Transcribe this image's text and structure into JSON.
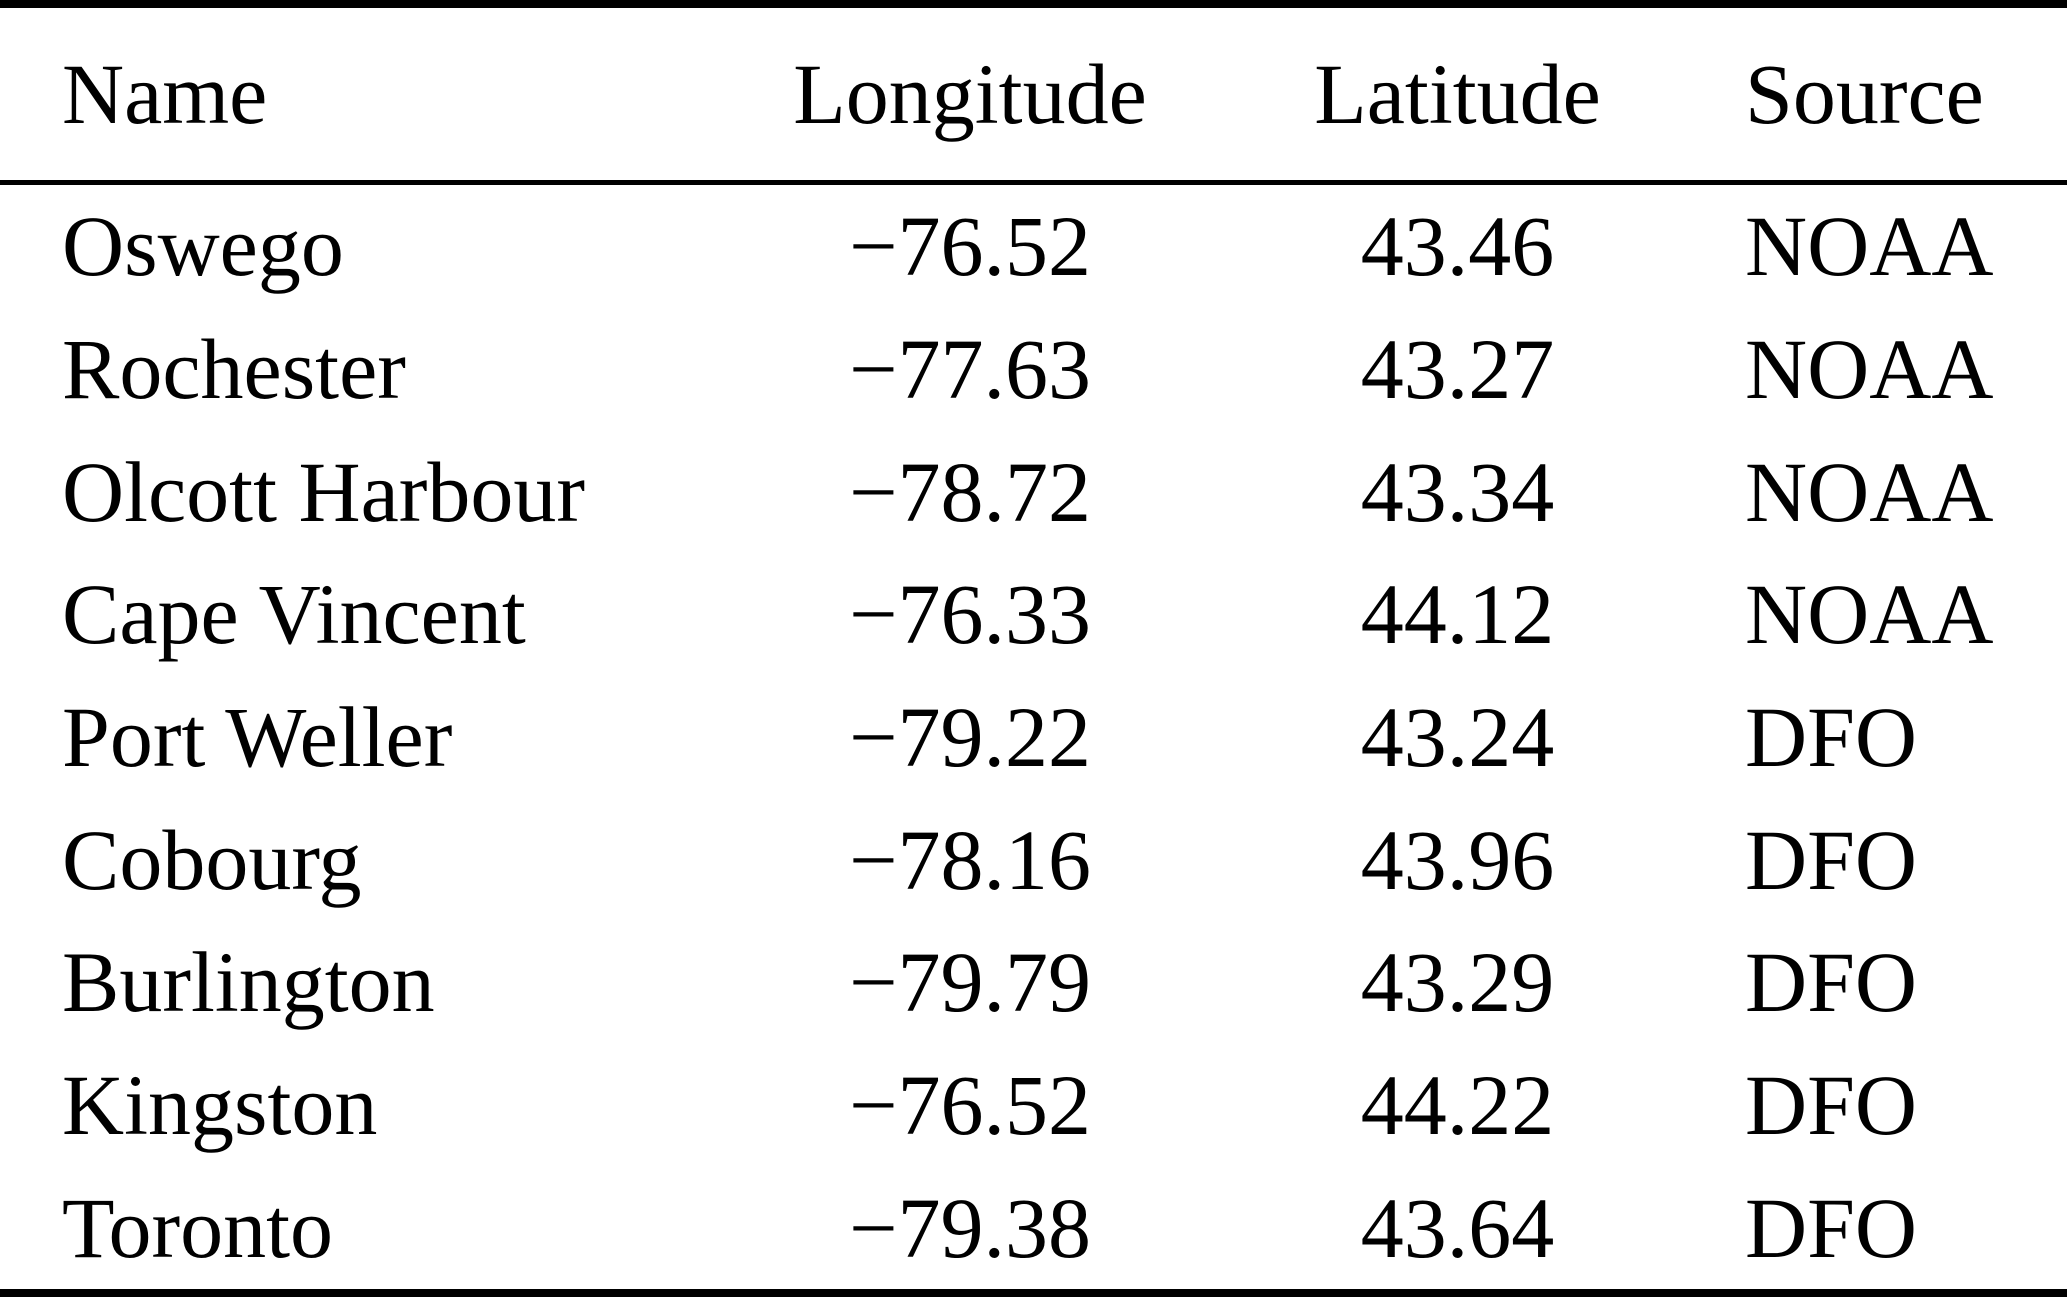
{
  "page": {
    "background_color": "#ffffff",
    "text_color": "#000000",
    "rule_color": "#000000"
  },
  "table": {
    "headers": {
      "name": "Name",
      "longitude": "Longitude",
      "latitude": "Latitude",
      "source": "Source"
    },
    "rows": [
      {
        "name": "Oswego",
        "longitude": "−76.52",
        "latitude": "43.46",
        "source": "NOAA"
      },
      {
        "name": "Rochester",
        "longitude": "−77.63",
        "latitude": "43.27",
        "source": "NOAA"
      },
      {
        "name": "Olcott Harbour",
        "longitude": "−78.72",
        "latitude": "43.34",
        "source": "NOAA"
      },
      {
        "name": "Cape Vincent",
        "longitude": "−76.33",
        "latitude": "44.12",
        "source": "NOAA"
      },
      {
        "name": "Port Weller",
        "longitude": "−79.22",
        "latitude": "43.24",
        "source": "DFO"
      },
      {
        "name": "Cobourg",
        "longitude": "−78.16",
        "latitude": "43.96",
        "source": "DFO"
      },
      {
        "name": "Burlington",
        "longitude": "−79.79",
        "latitude": "43.29",
        "source": "DFO"
      },
      {
        "name": "Kingston",
        "longitude": "−76.52",
        "latitude": "44.22",
        "source": "DFO"
      },
      {
        "name": "Toronto",
        "longitude": "−79.38",
        "latitude": "43.64",
        "source": "DFO"
      }
    ]
  }
}
